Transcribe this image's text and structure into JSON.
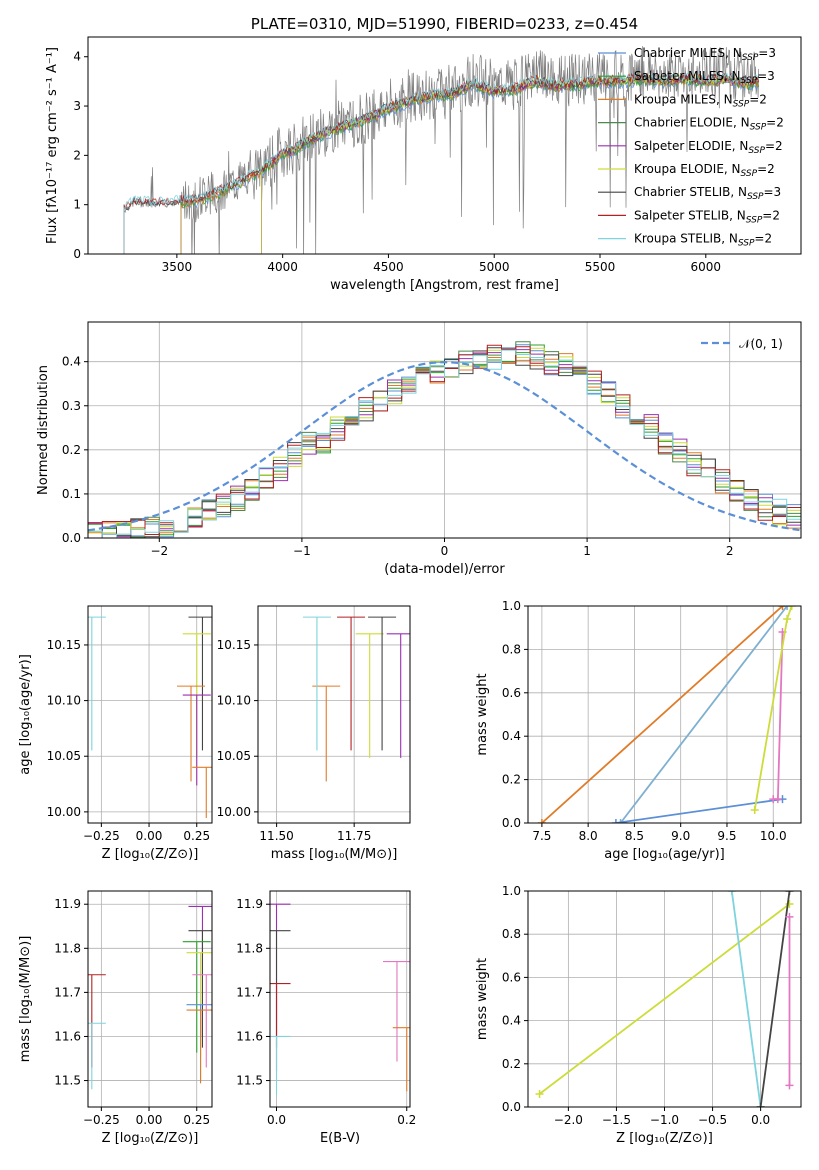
{
  "chart_data": [
    {
      "id": "spectrum",
      "type": "line",
      "title": "PLATE=0310, MJD=51990, FIBERID=0233, z=0.454",
      "xlabel": "wavelength [Angstrom, rest frame]",
      "ylabel": "Flux [fλ10⁻¹⁷ erg cm⁻² s⁻¹ A⁻¹]",
      "xlim": [
        3080,
        6450
      ],
      "ylim": [
        0,
        4.4
      ],
      "xticks": [
        3500,
        4000,
        4500,
        5000,
        5500,
        6000
      ],
      "yticks": [
        0,
        1,
        2,
        3,
        4
      ],
      "grid": false,
      "legend_position": "top-right",
      "data_color": "#7f7f7f",
      "data_continuum": {
        "x": [
          3250,
          3300,
          3400,
          3500,
          3600,
          3700,
          3800,
          3900,
          3950,
          4000,
          4050,
          4100,
          4200,
          4300,
          4400,
          4500,
          4600,
          4700,
          4800,
          4900,
          5000,
          5100,
          5200,
          5300,
          5400,
          5500,
          5600,
          5700,
          5800,
          5900,
          6000,
          6100,
          6200,
          6250
        ],
        "y": [
          0.9,
          1.05,
          1.0,
          1.05,
          1.15,
          1.3,
          1.5,
          1.75,
          1.9,
          2.1,
          2.15,
          2.3,
          2.5,
          2.65,
          2.8,
          3.0,
          3.15,
          3.25,
          3.3,
          3.55,
          3.4,
          3.45,
          3.6,
          3.5,
          3.55,
          3.6,
          3.6,
          3.7,
          3.65,
          3.7,
          3.65,
          3.7,
          3.6,
          3.65
        ]
      },
      "model_continuum": {
        "x": [
          3250,
          3300,
          3400,
          3500,
          3600,
          3700,
          3800,
          3900,
          3950,
          4000,
          4050,
          4100,
          4200,
          4300,
          4400,
          4500,
          4600,
          4700,
          4800,
          4900,
          5000,
          5100,
          5200,
          5300,
          5400,
          5500,
          5600,
          5700,
          5800,
          5900,
          6000,
          6100,
          6200,
          6250
        ],
        "y": [
          0.9,
          1.05,
          1.0,
          1.05,
          1.1,
          1.25,
          1.45,
          1.7,
          1.85,
          2.05,
          2.1,
          2.25,
          2.45,
          2.6,
          2.75,
          2.95,
          3.1,
          3.2,
          3.25,
          3.45,
          3.3,
          3.35,
          3.5,
          3.4,
          3.45,
          3.5,
          3.5,
          3.55,
          3.5,
          3.55,
          3.5,
          3.55,
          3.45,
          3.5
        ]
      },
      "series": [
        {
          "name": "Chabrier MILES, N_SSP=3",
          "color": "#5b8fd6",
          "start": 3520
        },
        {
          "name": "Salpeter MILES, N_SSP=3",
          "color": "#2ca02c",
          "start": 3520
        },
        {
          "name": "Kroupa MILES, N_SSP=2",
          "color": "#e07b28",
          "start": 3520
        },
        {
          "name": "Chabrier ELODIE, N_SSP=2",
          "color": "#4a8a4a",
          "start": 3900
        },
        {
          "name": "Salpeter ELODIE, N_SSP=2",
          "color": "#9b30b0",
          "start": 3900
        },
        {
          "name": "Kroupa ELODIE, N_SSP=2",
          "color": "#cddc39",
          "start": 3900
        },
        {
          "name": "Chabrier STELIB, N_SSP=3",
          "color": "#444444",
          "start": 3250
        },
        {
          "name": "Salpeter STELIB, N_SSP=2",
          "color": "#b22222",
          "start": 3250
        },
        {
          "name": "Kroupa STELIB, N_SSP=2",
          "color": "#7fd3de",
          "start": 3250
        }
      ]
    },
    {
      "id": "residuals",
      "type": "histogram",
      "xlabel": "(data-model)/error",
      "ylabel": "Normed distribution",
      "xlim": [
        -2.5,
        2.5
      ],
      "ylim": [
        0,
        0.49
      ],
      "xticks": [
        -2,
        -1,
        0,
        1,
        2
      ],
      "yticks": [
        0.0,
        0.1,
        0.2,
        0.3,
        0.4
      ],
      "grid": true,
      "legend_position": "top-right",
      "reference": {
        "label": "𝒩(0, 1)",
        "color": "#5b8fd6",
        "style": "dashed"
      },
      "bin_edges_start": -2.5,
      "bin_width": 0.1,
      "base_values": [
        0.01,
        0.01,
        0.015,
        0.02,
        0.02,
        0.03,
        0.04,
        0.05,
        0.06,
        0.07,
        0.09,
        0.11,
        0.14,
        0.16,
        0.19,
        0.21,
        0.22,
        0.25,
        0.27,
        0.29,
        0.31,
        0.33,
        0.35,
        0.37,
        0.38,
        0.39,
        0.4,
        0.41,
        0.41,
        0.42,
        0.42,
        0.41,
        0.4,
        0.39,
        0.37,
        0.35,
        0.33,
        0.3,
        0.27,
        0.25,
        0.22,
        0.2,
        0.17,
        0.15,
        0.13,
        0.11,
        0.09,
        0.07,
        0.06,
        0.05
      ],
      "series_colors": [
        "#5b8fd6",
        "#2ca02c",
        "#e07b28",
        "#4a8a4a",
        "#9b30b0",
        "#cddc39",
        "#444444",
        "#b22222",
        "#7fd3de"
      ]
    },
    {
      "id": "age-vs-Z",
      "type": "scatter",
      "xlabel": "Z [log₁₀(Z/Z⊙)]",
      "ylabel": "age  [log₁₀(age/yr)]",
      "xlim": [
        -0.32,
        0.33
      ],
      "ylim": [
        9.99,
        10.185
      ],
      "xticks": [
        -0.25,
        0.0,
        0.25
      ],
      "yticks": [
        10.0,
        10.05,
        10.1,
        10.15
      ],
      "grid": true,
      "points": [
        {
          "x": 0.28,
          "y": 10.175,
          "color": "#444444"
        },
        {
          "x": 0.25,
          "y": 10.16,
          "color": "#cddc39"
        },
        {
          "x": 0.22,
          "y": 10.113,
          "color": "#e07b28"
        },
        {
          "x": 0.25,
          "y": 10.105,
          "color": "#9b30b0"
        },
        {
          "x": -0.3,
          "y": 10.175,
          "color": "#7fd3de"
        },
        {
          "x": 0.3,
          "y": 10.04,
          "color": "#e07b28"
        }
      ]
    },
    {
      "id": "age-vs-mass",
      "type": "scatter",
      "xlabel": "mass [log₁₀(M/M⊙)]",
      "ylabel": "",
      "xlim": [
        11.44,
        11.93
      ],
      "ylim": [
        9.99,
        10.185
      ],
      "xticks": [
        11.5,
        11.75
      ],
      "yticks": [
        10.0,
        10.05,
        10.1,
        10.15
      ],
      "grid": true,
      "points": [
        {
          "x": 11.74,
          "y": 10.175,
          "color": "#b22222"
        },
        {
          "x": 11.8,
          "y": 10.16,
          "color": "#cddc39"
        },
        {
          "x": 11.66,
          "y": 10.113,
          "color": "#e07b28"
        },
        {
          "x": 11.84,
          "y": 10.175,
          "color": "#444444"
        },
        {
          "x": 11.9,
          "y": 10.16,
          "color": "#9b30b0"
        },
        {
          "x": 11.63,
          "y": 10.175,
          "color": "#7fd3de"
        }
      ]
    },
    {
      "id": "massweight-vs-age",
      "type": "line",
      "xlabel": "age  [log₁₀(age/yr)]",
      "ylabel": "mass weight",
      "xlim": [
        7.35,
        10.3
      ],
      "ylim": [
        0,
        1.0
      ],
      "xticks": [
        7.5,
        8.0,
        8.5,
        9.0,
        9.5,
        10.0
      ],
      "yticks": [
        0.0,
        0.2,
        0.4,
        0.6,
        0.8,
        1.0
      ],
      "grid": true,
      "series": [
        {
          "color": "#e07b28",
          "x": [
            7.5,
            10.1
          ],
          "y": [
            0.0,
            1.0
          ]
        },
        {
          "color": "#7fb0d0",
          "x": [
            8.35,
            10.15
          ],
          "y": [
            0.0,
            1.0
          ]
        },
        {
          "color": "#5b8fd6",
          "x": [
            8.3,
            10.1
          ],
          "y": [
            0.0,
            0.11
          ]
        },
        {
          "color": "#e377c2",
          "x": [
            10.0,
            10.05,
            10.1
          ],
          "y": [
            0.11,
            0.11,
            0.88
          ]
        },
        {
          "color": "#cddc39",
          "x": [
            9.8,
            10.15,
            10.2
          ],
          "y": [
            0.06,
            0.94,
            1.0
          ]
        }
      ]
    },
    {
      "id": "mass-vs-Z",
      "type": "scatter",
      "xlabel": "Z [log₁₀(Z/Z⊙)]",
      "ylabel": "mass [log₁₀(M/M⊙)]",
      "xlim": [
        -0.32,
        0.33
      ],
      "ylim": [
        11.44,
        11.93
      ],
      "xticks": [
        -0.25,
        0.0,
        0.25
      ],
      "yticks": [
        11.5,
        11.6,
        11.7,
        11.8,
        11.9
      ],
      "grid": true,
      "points": [
        {
          "x": 0.28,
          "y": 11.895,
          "color": "#9b30b0"
        },
        {
          "x": 0.28,
          "y": 11.84,
          "color": "#444444"
        },
        {
          "x": 0.25,
          "y": 11.815,
          "color": "#2ca02c"
        },
        {
          "x": 0.27,
          "y": 11.79,
          "color": "#cddc39"
        },
        {
          "x": -0.3,
          "y": 11.74,
          "color": "#b22222"
        },
        {
          "x": 0.27,
          "y": 11.672,
          "color": "#5b8fd6"
        },
        {
          "x": 0.27,
          "y": 11.66,
          "color": "#e07b28"
        },
        {
          "x": -0.3,
          "y": 11.63,
          "color": "#7fd3de"
        },
        {
          "x": 0.3,
          "y": 11.74,
          "color": "#e377c2"
        }
      ]
    },
    {
      "id": "mass-vs-EBV",
      "type": "scatter",
      "xlabel": "E(B-V)",
      "ylabel": "",
      "xlim": [
        -0.01,
        0.205
      ],
      "ylim": [
        11.44,
        11.93
      ],
      "xticks": [
        0.0,
        0.2
      ],
      "yticks": [
        11.5,
        11.6,
        11.7,
        11.8,
        11.9
      ],
      "grid": true,
      "points": [
        {
          "x": 0.0,
          "y": 11.9,
          "color": "#9b30b0"
        },
        {
          "x": 0.0,
          "y": 11.84,
          "color": "#444444"
        },
        {
          "x": 0.0,
          "y": 11.72,
          "color": "#b22222"
        },
        {
          "x": 0.0,
          "y": 11.6,
          "color": "#7fd3de"
        },
        {
          "x": 0.185,
          "y": 11.77,
          "color": "#e377c2"
        },
        {
          "x": 0.2,
          "y": 11.62,
          "color": "#e07b28"
        }
      ]
    },
    {
      "id": "massweight-vs-Z",
      "type": "line",
      "xlabel": "Z [log₁₀(Z/Z⊙)]",
      "ylabel": "mass weight",
      "xlim": [
        -2.42,
        0.42
      ],
      "ylim": [
        0,
        1.0
      ],
      "xticks": [
        -2.0,
        -1.5,
        -1.0,
        -0.5,
        0.0
      ],
      "yticks": [
        0.0,
        0.2,
        0.4,
        0.6,
        0.8,
        1.0
      ],
      "grid": true,
      "series": [
        {
          "color": "#cddc39",
          "x": [
            -2.3,
            0.3
          ],
          "y": [
            0.06,
            0.94
          ]
        },
        {
          "color": "#7fd3de",
          "x": [
            -0.3,
            0.0
          ],
          "y": [
            1.0,
            0.0
          ]
        },
        {
          "color": "#444444",
          "x": [
            0.0,
            0.3
          ],
          "y": [
            0.0,
            1.0
          ]
        },
        {
          "color": "#e377c2",
          "x": [
            0.3,
            0.3
          ],
          "y": [
            0.1,
            0.88
          ]
        }
      ]
    }
  ]
}
